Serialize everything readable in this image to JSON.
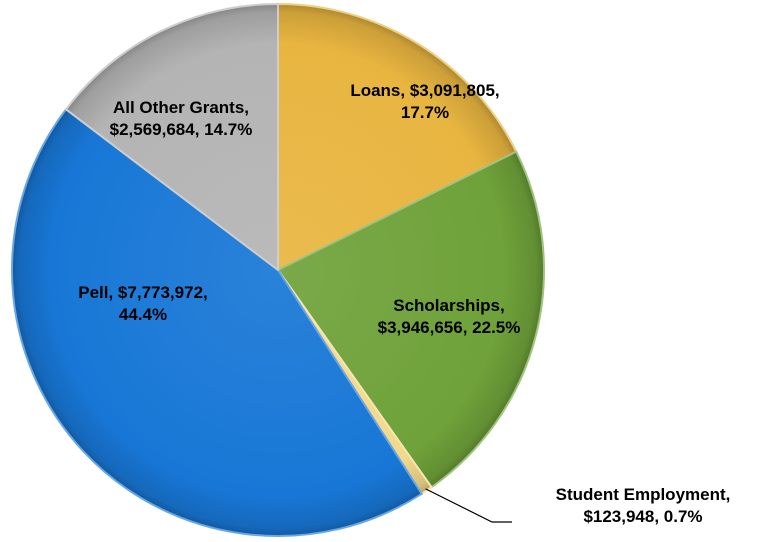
{
  "chart_data": {
    "type": "pie",
    "title": "",
    "start_angle_deg": 0,
    "direction": "clockwise",
    "style": "3d-bevel",
    "slices": [
      {
        "name": "Loans",
        "value": 3091805,
        "percent": 17.7,
        "value_label": "$3,091,805",
        "percent_label": "17.7%",
        "label_lines": [
          "Loans, $3,091,805,",
          "17.7%"
        ],
        "color": "#E8B540",
        "label_placement": "inside"
      },
      {
        "name": "Scholarships",
        "value": 3946656,
        "percent": 22.5,
        "value_label": "$3,946,656",
        "percent_label": "22.5%",
        "label_lines": [
          "Scholarships,",
          "$3,946,656, 22.5%"
        ],
        "color": "#6FA23A",
        "label_placement": "inside"
      },
      {
        "name": "Student Employment",
        "value": 123948,
        "percent": 0.7,
        "value_label": "$123,948",
        "percent_label": "0.7%",
        "label_lines": [
          "Student Employment,",
          "$123,948, 0.7%"
        ],
        "color": "#F3D98A",
        "label_placement": "outside-leader"
      },
      {
        "name": "Pell",
        "value": 7773972,
        "percent": 44.4,
        "value_label": "$7,773,972",
        "percent_label": "44.4%",
        "label_lines": [
          "Pell, $7,773,972,",
          "44.4%"
        ],
        "color": "#1877D6",
        "label_placement": "inside"
      },
      {
        "name": "All Other Grants",
        "value": 2569684,
        "percent": 14.7,
        "value_label": "$2,569,684",
        "percent_label": "14.7%",
        "label_lines": [
          "All Other Grants,",
          "$2,569,684, 14.7%"
        ],
        "color": "#B4B4B4",
        "label_placement": "inside"
      }
    ]
  }
}
